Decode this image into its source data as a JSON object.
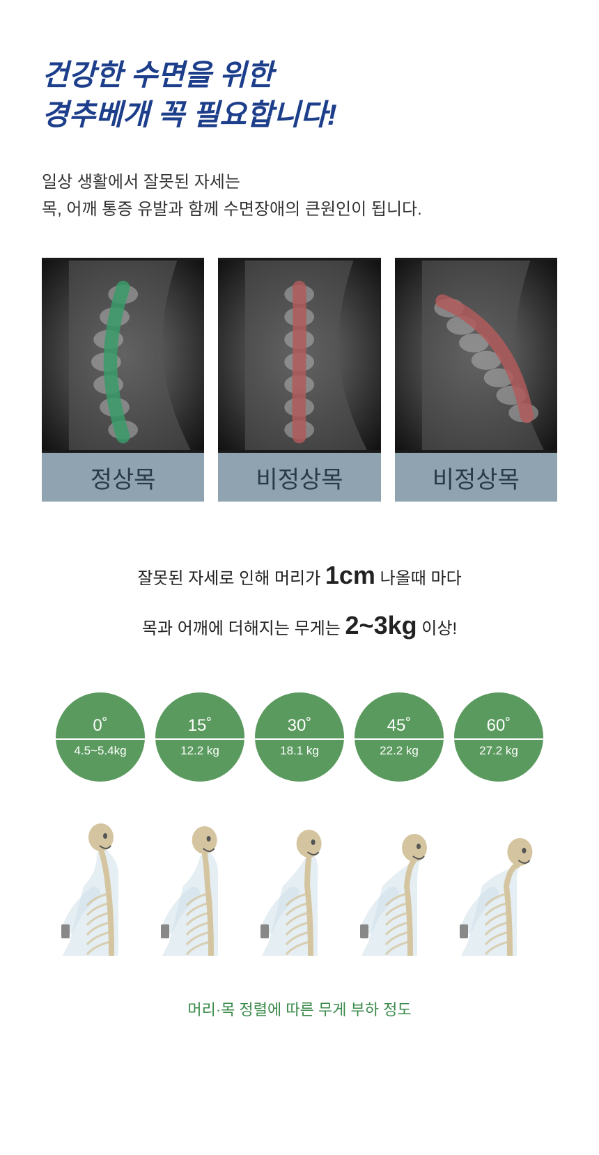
{
  "title": {
    "line1": "건강한 수면을 위한",
    "line2": "경추베개 꼭  필요합니다!",
    "color": "#1d3e8a"
  },
  "subtitle": {
    "line1": "일상 생활에서 잘못된 자세는",
    "line2": "목, 어깨 통증 유발과 함께 수면장애의 큰원인이 됩니다."
  },
  "xray": {
    "label_bg": "#8fa3b0",
    "items": [
      {
        "label": "정상목",
        "curve_color": "#3a9a6a",
        "bend": 0
      },
      {
        "label": "비정상목",
        "curve_color": "#b05a5a",
        "bend": 1
      },
      {
        "label": "비정상목",
        "curve_color": "#b05a5a",
        "bend": 2
      }
    ]
  },
  "mid": {
    "t1": "잘못된 자세로 인해 머리가",
    "b1": "1cm",
    "t2": "나올때 마다",
    "t3": "목과 어깨에 더해지는 무게는",
    "b2": "2~3kg",
    "t4": "이상!"
  },
  "badges": {
    "bg": "#5a9a5e",
    "items": [
      {
        "angle": "0˚",
        "weight": "4.5~5.4kg"
      },
      {
        "angle": "15˚",
        "weight": "12.2 kg"
      },
      {
        "angle": "30˚",
        "weight": "18.1 kg"
      },
      {
        "angle": "45˚",
        "weight": "22.2 kg"
      },
      {
        "angle": "60˚",
        "weight": "27.2 kg"
      }
    ]
  },
  "skeletons": {
    "tilts": [
      0,
      8,
      18,
      30,
      42
    ],
    "bone_color": "#d4c5a0",
    "body_color": "#cfe0ea"
  },
  "footer": {
    "text": "머리·목 정렬에 따른 무게 부하 정도",
    "color": "#3a8a4a"
  }
}
